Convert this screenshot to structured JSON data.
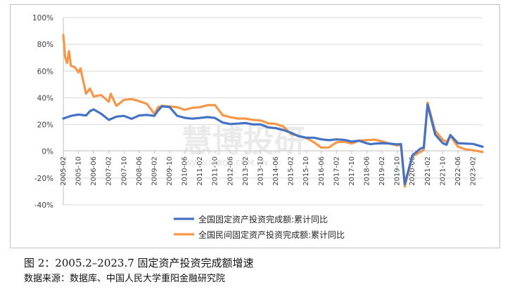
{
  "chart_data": {
    "type": "line",
    "x_ticks": [
      "2005-02",
      "2005-10",
      "2006-06",
      "2007-02",
      "2007-10",
      "2008-06",
      "2009-02",
      "2009-10",
      "2010-06",
      "2011-02",
      "2011-10",
      "2012-06",
      "2013-02",
      "2013-10",
      "2014-06",
      "2015-02",
      "2015-10",
      "2016-06",
      "2017-02",
      "2017-10",
      "2018-06",
      "2019-02",
      "2019-10",
      "2020-06",
      "2021-02",
      "2021-10",
      "2022-06",
      "2023-02"
    ],
    "y_ticks": [
      "100%",
      "80%",
      "60%",
      "40%",
      "20%",
      "0%",
      "-20%",
      "-40%"
    ],
    "ylim": [
      -40,
      100
    ],
    "xlim": [
      "2005-02",
      "2023-07"
    ],
    "series": [
      {
        "name": "全国固定资产投资完成额:累计同比",
        "color": "#4472c4",
        "points": [
          [
            "2005-02",
            24.5
          ],
          [
            "2005-06",
            26.5
          ],
          [
            "2005-10",
            27.5
          ],
          [
            "2006-02",
            26.8
          ],
          [
            "2006-04",
            30
          ],
          [
            "2006-06",
            31.3
          ],
          [
            "2006-10",
            28
          ],
          [
            "2007-02",
            23.5
          ],
          [
            "2007-06",
            25.9
          ],
          [
            "2007-10",
            26.5
          ],
          [
            "2008-02",
            24.3
          ],
          [
            "2008-06",
            26.8
          ],
          [
            "2008-10",
            27.2
          ],
          [
            "2009-02",
            26.5
          ],
          [
            "2009-04",
            30.5
          ],
          [
            "2009-06",
            33.6
          ],
          [
            "2009-10",
            33.1
          ],
          [
            "2010-02",
            26.6
          ],
          [
            "2010-06",
            25
          ],
          [
            "2010-10",
            24.4
          ],
          [
            "2011-02",
            24.9
          ],
          [
            "2011-06",
            25.6
          ],
          [
            "2011-10",
            24.9
          ],
          [
            "2012-02",
            21.5
          ],
          [
            "2012-06",
            20.4
          ],
          [
            "2012-10",
            20.7
          ],
          [
            "2013-02",
            21.2
          ],
          [
            "2013-06",
            20.1
          ],
          [
            "2013-10",
            20.1
          ],
          [
            "2014-02",
            17.9
          ],
          [
            "2014-06",
            17.3
          ],
          [
            "2014-10",
            15.9
          ],
          [
            "2015-02",
            13.9
          ],
          [
            "2015-06",
            11.4
          ],
          [
            "2015-10",
            10.2
          ],
          [
            "2016-02",
            10.2
          ],
          [
            "2016-06",
            9
          ],
          [
            "2016-10",
            8.3
          ],
          [
            "2017-02",
            8.9
          ],
          [
            "2017-06",
            8.6
          ],
          [
            "2017-10",
            7.3
          ],
          [
            "2018-02",
            7.9
          ],
          [
            "2018-06",
            6
          ],
          [
            "2018-08",
            5.3
          ],
          [
            "2018-10",
            5.7
          ],
          [
            "2019-02",
            6.1
          ],
          [
            "2019-06",
            5.8
          ],
          [
            "2019-10",
            5.2
          ],
          [
            "2019-12",
            5.4
          ],
          [
            "2020-02",
            -24.5
          ],
          [
            "2020-06",
            -3.1
          ],
          [
            "2020-10",
            1.8
          ],
          [
            "2020-12",
            2.9
          ],
          [
            "2021-02",
            35
          ],
          [
            "2021-06",
            12.6
          ],
          [
            "2021-10",
            6.1
          ],
          [
            "2021-12",
            4.9
          ],
          [
            "2022-02",
            12.2
          ],
          [
            "2022-06",
            6.1
          ],
          [
            "2022-10",
            5.8
          ],
          [
            "2023-02",
            5.5
          ],
          [
            "2023-07",
            3.4
          ]
        ]
      },
      {
        "name": "全国民间固定资产投资完成额:累计同比",
        "color": "#f79646",
        "points": [
          [
            "2005-02",
            87
          ],
          [
            "2005-03",
            70
          ],
          [
            "2005-04",
            66
          ],
          [
            "2005-05",
            75
          ],
          [
            "2005-06",
            64
          ],
          [
            "2005-08",
            63
          ],
          [
            "2005-10",
            59
          ],
          [
            "2005-11",
            62
          ],
          [
            "2006-02",
            43
          ],
          [
            "2006-04",
            47
          ],
          [
            "2006-06",
            41
          ],
          [
            "2006-10",
            42
          ],
          [
            "2007-02",
            37
          ],
          [
            "2007-03",
            43
          ],
          [
            "2007-06",
            34
          ],
          [
            "2007-10",
            38.5
          ],
          [
            "2008-02",
            39
          ],
          [
            "2008-06",
            37.5
          ],
          [
            "2008-10",
            35.5
          ],
          [
            "2009-02",
            28
          ],
          [
            "2009-04",
            33
          ],
          [
            "2009-06",
            34
          ],
          [
            "2009-10",
            33.5
          ],
          [
            "2010-02",
            33
          ],
          [
            "2010-06",
            31
          ],
          [
            "2010-10",
            32.5
          ],
          [
            "2011-02",
            33
          ],
          [
            "2011-06",
            34.5
          ],
          [
            "2011-10",
            34.5
          ],
          [
            "2012-02",
            27
          ],
          [
            "2012-06",
            25.5
          ],
          [
            "2012-10",
            24.5
          ],
          [
            "2013-02",
            24.5
          ],
          [
            "2013-06",
            23.5
          ],
          [
            "2013-10",
            23
          ],
          [
            "2014-02",
            21
          ],
          [
            "2014-06",
            20.5
          ],
          [
            "2014-10",
            18.5
          ],
          [
            "2015-02",
            13
          ],
          [
            "2015-06",
            11.5
          ],
          [
            "2015-10",
            10
          ],
          [
            "2016-02",
            6.9
          ],
          [
            "2016-06",
            2.8
          ],
          [
            "2016-10",
            2.9
          ],
          [
            "2017-02",
            6.7
          ],
          [
            "2017-06",
            7.2
          ],
          [
            "2017-10",
            5.8
          ],
          [
            "2018-02",
            8.1
          ],
          [
            "2018-06",
            8.4
          ],
          [
            "2018-10",
            8.7
          ],
          [
            "2019-02",
            7.5
          ],
          [
            "2019-06",
            5.7
          ],
          [
            "2019-10",
            4.4
          ],
          [
            "2019-12",
            4.7
          ],
          [
            "2020-02",
            -26.4
          ],
          [
            "2020-06",
            -3.8
          ],
          [
            "2020-10",
            -0.7
          ],
          [
            "2020-12",
            1
          ],
          [
            "2021-02",
            36.4
          ],
          [
            "2021-06",
            15.4
          ],
          [
            "2021-10",
            8.6
          ],
          [
            "2021-12",
            7
          ],
          [
            "2022-02",
            11.4
          ],
          [
            "2022-06",
            3.5
          ],
          [
            "2022-10",
            1.5
          ],
          [
            "2023-02",
            0.8
          ],
          [
            "2023-07",
            -0.5
          ]
        ]
      }
    ],
    "legend_position": "bottom",
    "grid": "horizontal"
  },
  "watermark": {
    "main": "慧博投研",
    "sub": "WWW.HIBOR.COM.CN"
  },
  "caption": "图 2：2005.2–2023.7 固定资产投资完成额增速",
  "source": "数据来源：数据库、中国人民大学重阳金融研究院"
}
